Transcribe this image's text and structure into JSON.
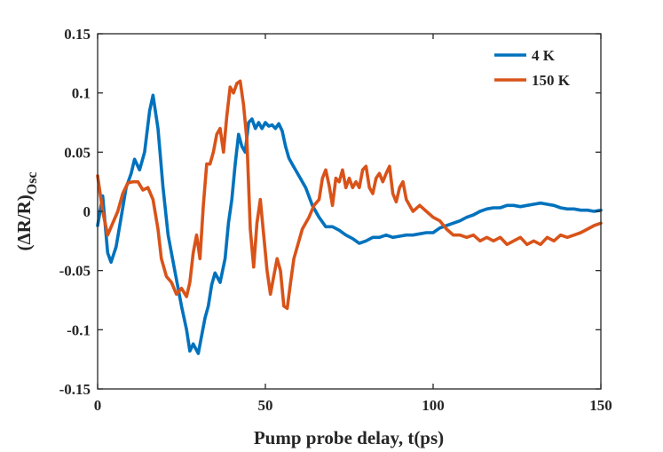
{
  "chart_data": {
    "type": "line",
    "title": "",
    "xlabel": "Pump probe delay, t(ps)",
    "ylabel": {
      "main": "(ΔR/R)",
      "sub": "Osc"
    },
    "xlim": [
      0,
      150
    ],
    "ylim": [
      -0.15,
      0.15
    ],
    "xticks": [
      0,
      50,
      100,
      150
    ],
    "xtick_labels": [
      "0",
      "50",
      "100",
      "150"
    ],
    "yticks": [
      -0.15,
      -0.1,
      -0.05,
      0,
      0.05,
      0.1,
      0.15
    ],
    "ytick_labels": [
      "-0.15",
      "-0.1",
      "-0.05",
      "0",
      "0.05",
      "0.1",
      "0.15"
    ],
    "grid": false,
    "legend_position": "top-right",
    "series": [
      {
        "name": "4 K",
        "color": "#0072BD",
        "x": [
          0,
          1.5,
          3,
          4,
          5.5,
          7,
          8.5,
          10,
          11,
          12.5,
          14,
          15.5,
          16.5,
          18,
          19.5,
          21,
          23,
          25,
          26.5,
          27.5,
          28.5,
          30,
          31,
          32,
          33,
          34,
          35,
          36.5,
          38,
          39,
          40,
          41,
          42,
          43,
          44,
          45,
          46,
          47,
          48,
          49,
          50,
          51,
          52,
          53,
          54,
          55,
          56,
          57,
          58,
          60,
          62,
          64,
          66,
          68,
          70,
          72,
          74,
          76,
          78,
          80,
          82,
          84,
          86,
          88,
          90,
          92,
          94,
          96,
          98,
          100,
          102,
          104,
          106,
          108,
          110,
          112,
          114,
          116,
          118,
          120,
          122,
          124,
          126,
          128,
          130,
          132,
          134,
          136,
          138,
          140,
          142,
          144,
          146,
          148,
          150
        ],
        "y": [
          -0.012,
          0.013,
          -0.035,
          -0.043,
          -0.03,
          -0.005,
          0.02,
          0.032,
          0.044,
          0.035,
          0.05,
          0.085,
          0.098,
          0.07,
          0.02,
          -0.02,
          -0.05,
          -0.08,
          -0.1,
          -0.118,
          -0.112,
          -0.12,
          -0.105,
          -0.09,
          -0.08,
          -0.062,
          -0.052,
          -0.06,
          -0.04,
          -0.01,
          0.01,
          0.04,
          0.065,
          0.055,
          0.05,
          0.075,
          0.078,
          0.07,
          0.075,
          0.07,
          0.075,
          0.072,
          0.073,
          0.07,
          0.074,
          0.068,
          0.055,
          0.045,
          0.04,
          0.03,
          0.02,
          0.005,
          -0.005,
          -0.013,
          -0.013,
          -0.016,
          -0.02,
          -0.023,
          -0.027,
          -0.025,
          -0.022,
          -0.022,
          -0.02,
          -0.022,
          -0.021,
          -0.02,
          -0.02,
          -0.019,
          -0.018,
          -0.018,
          -0.014,
          -0.012,
          -0.01,
          -0.008,
          -0.005,
          -0.003,
          0.0,
          0.002,
          0.003,
          0.003,
          0.005,
          0.005,
          0.004,
          0.005,
          0.006,
          0.007,
          0.006,
          0.005,
          0.003,
          0.002,
          0.002,
          0.001,
          0.001,
          0.0,
          0.001
        ]
      },
      {
        "name": "150 K",
        "color": "#D95319",
        "x": [
          0,
          1.5,
          3,
          4.5,
          6,
          7.5,
          9,
          10.5,
          12,
          13.5,
          15,
          16.5,
          18,
          19,
          20.5,
          22,
          23.5,
          25,
          26.5,
          27.5,
          28.5,
          29.5,
          30.5,
          31.5,
          32.5,
          33.5,
          34.5,
          35.5,
          36.5,
          37.5,
          38.5,
          39.5,
          40.5,
          41.5,
          42.5,
          43.5,
          44.5,
          45.5,
          46.5,
          47.5,
          48.5,
          49.5,
          50.5,
          51.5,
          52.5,
          53.5,
          54.5,
          55.5,
          56.5,
          57.5,
          58.5,
          59.5,
          61,
          63,
          64.5,
          66,
          67,
          68,
          69,
          70,
          71,
          72,
          73,
          74,
          75,
          76,
          77,
          78,
          79,
          80,
          81,
          82,
          83,
          84,
          85,
          86,
          87,
          88,
          89,
          90,
          91,
          92,
          94,
          96,
          98,
          100,
          102,
          104,
          106,
          108,
          110,
          112,
          114,
          116,
          118,
          120,
          122,
          124,
          126,
          128,
          130,
          132,
          134,
          136,
          138,
          140,
          142,
          144,
          146,
          148,
          150
        ],
        "y": [
          0.03,
          0.0,
          -0.02,
          -0.01,
          0.0,
          0.015,
          0.024,
          0.025,
          0.025,
          0.018,
          0.02,
          0.01,
          -0.015,
          -0.04,
          -0.055,
          -0.06,
          -0.07,
          -0.065,
          -0.072,
          -0.06,
          -0.035,
          -0.02,
          -0.04,
          0.005,
          0.04,
          0.04,
          0.05,
          0.065,
          0.07,
          0.05,
          0.08,
          0.105,
          0.1,
          0.108,
          0.11,
          0.09,
          0.06,
          -0.015,
          -0.047,
          -0.01,
          0.01,
          -0.02,
          -0.05,
          -0.07,
          -0.055,
          -0.04,
          -0.05,
          -0.08,
          -0.082,
          -0.06,
          -0.04,
          -0.03,
          -0.015,
          -0.005,
          0.005,
          0.01,
          0.028,
          0.035,
          0.022,
          0.005,
          0.028,
          0.025,
          0.035,
          0.02,
          0.028,
          0.02,
          0.025,
          0.02,
          0.035,
          0.038,
          0.02,
          0.015,
          0.028,
          0.032,
          0.025,
          0.032,
          0.038,
          0.015,
          0.008,
          0.02,
          0.025,
          0.01,
          0.0,
          0.005,
          0.0,
          -0.005,
          -0.008,
          -0.015,
          -0.02,
          -0.02,
          -0.022,
          -0.02,
          -0.025,
          -0.022,
          -0.025,
          -0.022,
          -0.028,
          -0.025,
          -0.022,
          -0.028,
          -0.025,
          -0.028,
          -0.022,
          -0.025,
          -0.02,
          -0.022,
          -0.02,
          -0.018,
          -0.015,
          -0.012,
          -0.01
        ]
      }
    ]
  }
}
